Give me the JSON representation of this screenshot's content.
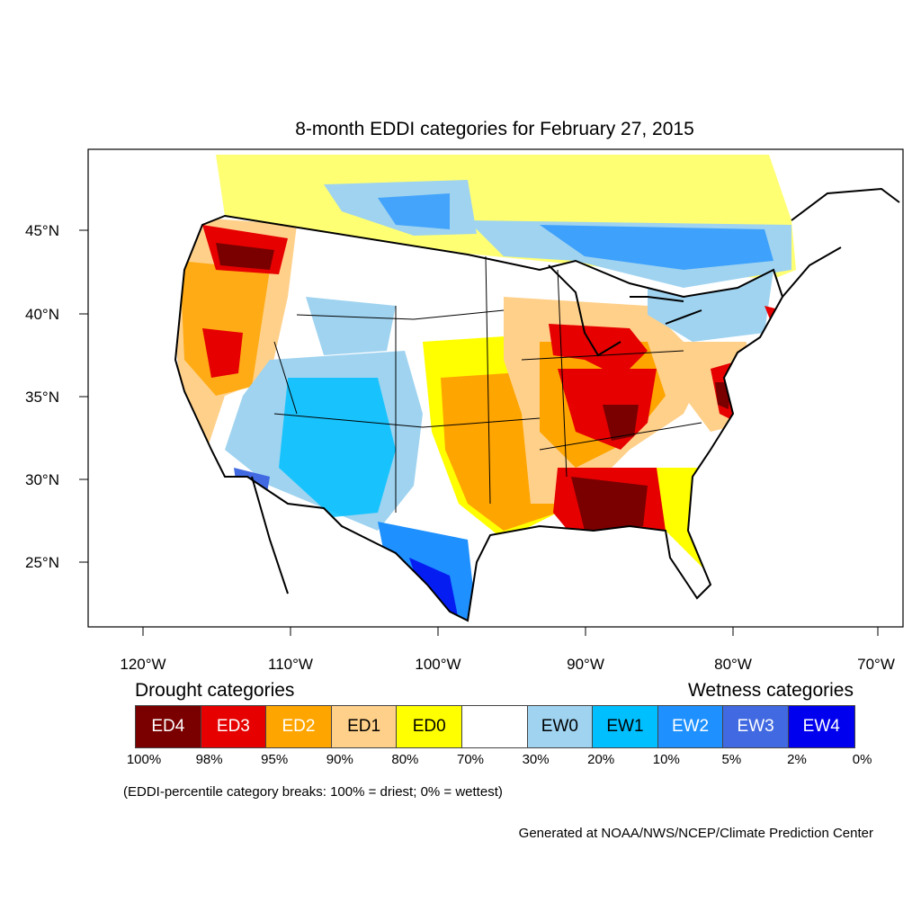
{
  "title": "8-month EDDI categories for February 27, 2015",
  "axes": {
    "lat_labels": [
      "45°N",
      "40°N",
      "35°N",
      "30°N",
      "25°N"
    ],
    "lon_labels": [
      "120°W",
      "110°W",
      "100°W",
      "90°W",
      "80°W",
      "70°W"
    ]
  },
  "legend": {
    "drought_heading": "Drought categories",
    "wetness_heading": "Wetness categories",
    "categories": [
      {
        "label": "ED4",
        "color": "#7a0000",
        "text_color": "#ffffff"
      },
      {
        "label": "ED3",
        "color": "#e60000",
        "text_color": "#ffffff"
      },
      {
        "label": "ED2",
        "color": "#ffa500",
        "text_color": "#ffffff"
      },
      {
        "label": "ED1",
        "color": "#ffd08a",
        "text_color": "#000000"
      },
      {
        "label": "ED0",
        "color": "#ffff00",
        "text_color": "#000000"
      },
      {
        "label": "",
        "color": "#ffffff",
        "text_color": "#000000"
      },
      {
        "label": "EW0",
        "color": "#9fd3f0",
        "text_color": "#000000"
      },
      {
        "label": "EW1",
        "color": "#00bfff",
        "text_color": "#000000"
      },
      {
        "label": "EW2",
        "color": "#1e90ff",
        "text_color": "#ffffff"
      },
      {
        "label": "EW3",
        "color": "#4169e1",
        "text_color": "#ffffff"
      },
      {
        "label": "EW4",
        "color": "#0000ee",
        "text_color": "#ffffff"
      }
    ],
    "breaks": [
      "100%",
      "98%",
      "95%",
      "90%",
      "80%",
      "70%",
      "30%",
      "20%",
      "10%",
      "5%",
      "2%",
      "0%"
    ],
    "note": "(EDDI-percentile category breaks: 100% = driest; 0% = wettest)"
  },
  "credit": "Generated at NOAA/NWS/NCEP/Climate Prediction Center"
}
